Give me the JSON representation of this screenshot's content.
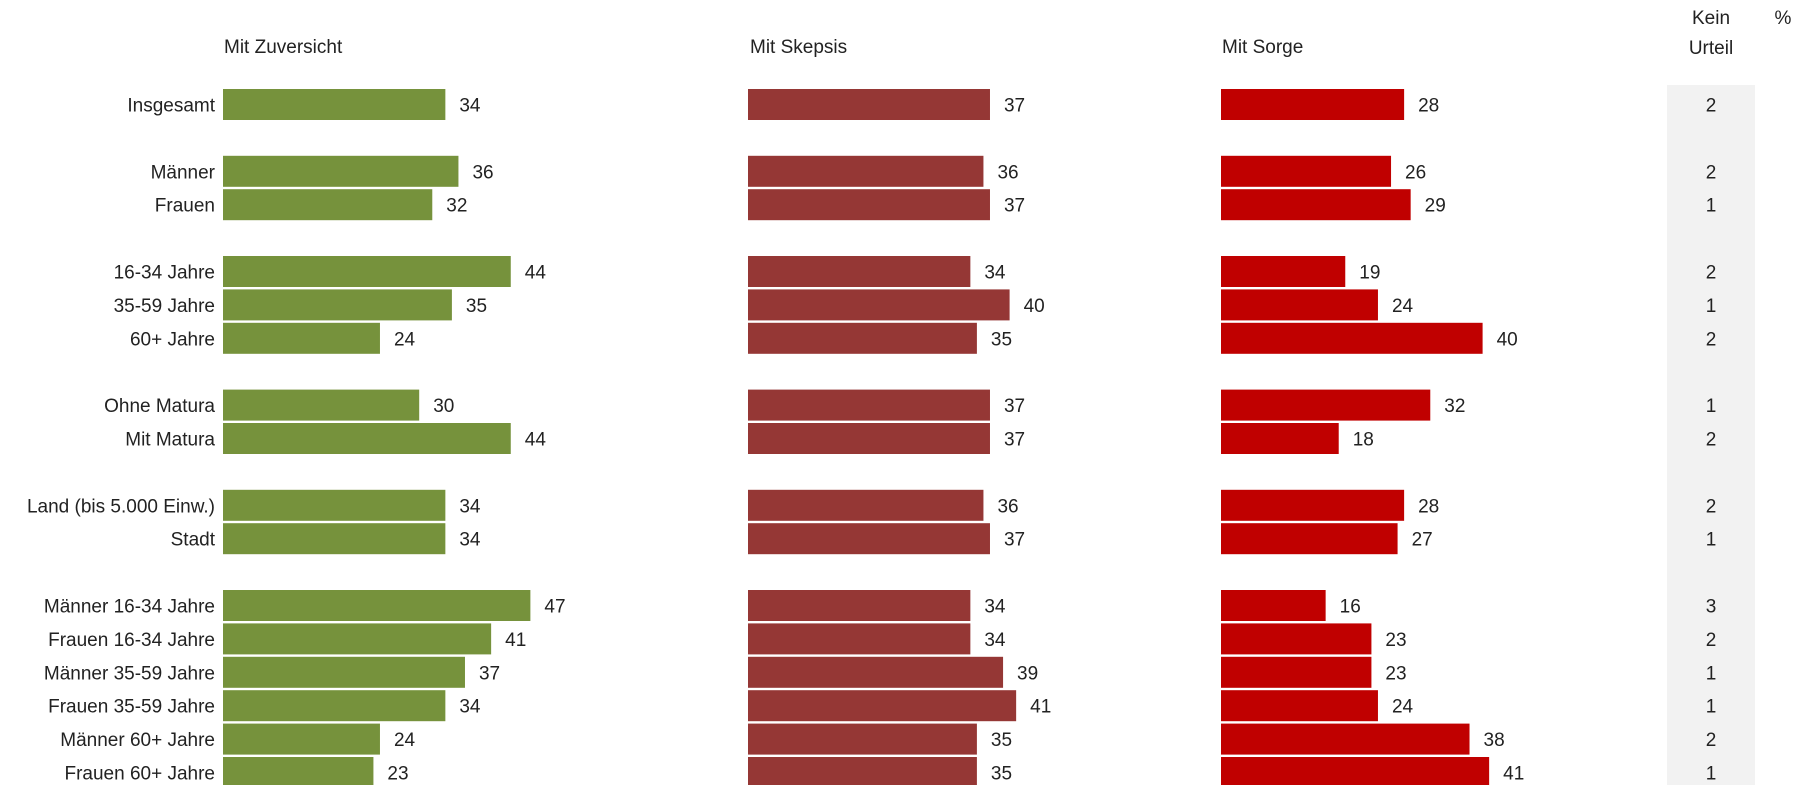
{
  "chart_data": {
    "type": "bar",
    "orientation": "horizontal",
    "unit_label": "%",
    "headers": {
      "series": [
        "Mit Zuversicht",
        "Mit Skepsis",
        "Mit Sorge"
      ],
      "no_opinion": [
        "Kein",
        "Urteil"
      ]
    },
    "colors": {
      "Mit Zuversicht": "#76923c",
      "Mit Skepsis": "#953735",
      "Mit Sorge": "#c00000",
      "no_opinion_bg": "#f2f2f2"
    },
    "groups": [
      [
        "Insgesamt"
      ],
      [
        "Männer",
        "Frauen"
      ],
      [
        "16-34 Jahre",
        "35-59 Jahre",
        "60+ Jahre"
      ],
      [
        "Ohne Matura",
        "Mit Matura"
      ],
      [
        "Land (bis 5.000 Einw.)",
        "Stadt"
      ],
      [
        "Männer 16-34 Jahre",
        "Frauen 16-34 Jahre",
        "Männer 35-59 Jahre",
        "Frauen 35-59 Jahre",
        "Männer 60+ Jahre",
        "Frauen 60+ Jahre"
      ]
    ],
    "categories": [
      "Insgesamt",
      "Männer",
      "Frauen",
      "16-34 Jahre",
      "35-59 Jahre",
      "60+ Jahre",
      "Ohne Matura",
      "Mit Matura",
      "Land (bis 5.000 Einw.)",
      "Stadt",
      "Männer 16-34 Jahre",
      "Frauen 16-34 Jahre",
      "Männer 35-59 Jahre",
      "Frauen 35-59 Jahre",
      "Männer 60+ Jahre",
      "Frauen 60+ Jahre"
    ],
    "series": [
      {
        "name": "Mit Zuversicht",
        "values": [
          34,
          36,
          32,
          44,
          35,
          24,
          30,
          44,
          34,
          34,
          47,
          41,
          37,
          34,
          24,
          23
        ]
      },
      {
        "name": "Mit Skepsis",
        "values": [
          37,
          36,
          37,
          34,
          40,
          35,
          37,
          37,
          36,
          37,
          34,
          34,
          39,
          41,
          35,
          35
        ]
      },
      {
        "name": "Mit Sorge",
        "values": [
          28,
          26,
          29,
          19,
          24,
          40,
          32,
          18,
          28,
          27,
          16,
          23,
          23,
          24,
          38,
          41
        ]
      }
    ],
    "no_opinion": {
      "name": "Kein Urteil",
      "values": [
        2,
        2,
        1,
        2,
        1,
        2,
        1,
        2,
        2,
        1,
        3,
        2,
        1,
        1,
        2,
        1
      ]
    }
  }
}
